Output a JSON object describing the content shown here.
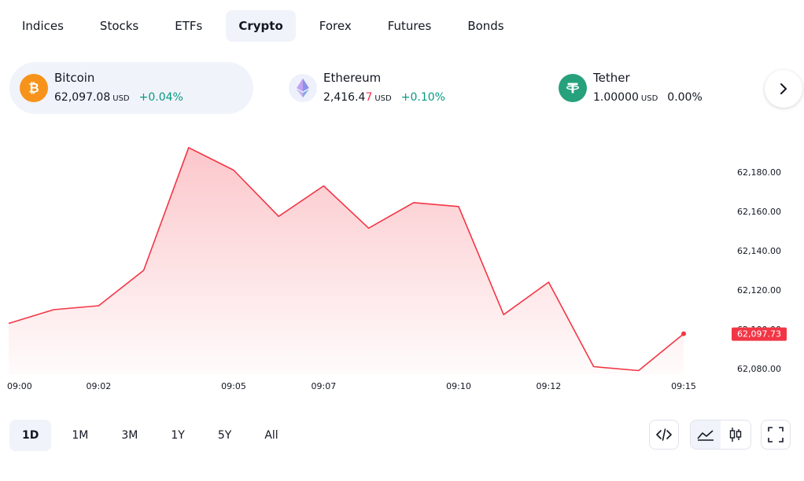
{
  "tabs": [
    {
      "label": "Indices",
      "active": false
    },
    {
      "label": "Stocks",
      "active": false
    },
    {
      "label": "ETFs",
      "active": false
    },
    {
      "label": "Crypto",
      "active": true
    },
    {
      "label": "Forex",
      "active": false
    },
    {
      "label": "Futures",
      "active": false
    },
    {
      "label": "Bonds",
      "active": false
    }
  ],
  "tickers": [
    {
      "name": "Bitcoin",
      "price": "62,097.08",
      "currency": "USD",
      "change": "+0.04%",
      "change_color": "#089981",
      "icon": "bitcoin-icon",
      "icon_color": "#f7931a",
      "active": true
    },
    {
      "name": "Ethereum",
      "price_main": "2,416.4",
      "price_last": "7",
      "currency": "USD",
      "change": "+0.10%",
      "change_color": "#089981",
      "icon": "ethereum-icon",
      "icon_color": "#627eea",
      "active": false
    },
    {
      "name": "Tether",
      "price": "1.00000",
      "currency": "USD",
      "change": "0.00%",
      "change_color": "#131722",
      "icon": "tether-icon",
      "icon_color": "#26a17b",
      "active": false
    }
  ],
  "chart_data": {
    "type": "area",
    "title": "",
    "xlabel": "",
    "ylabel": "",
    "x_tick_labels": [
      "09:00",
      "09:02",
      "09:05",
      "09:07",
      "09:10",
      "09:12",
      "09:15"
    ],
    "y_tick_labels": [
      "62,180.00",
      "62,160.00",
      "62,140.00",
      "62,120.00",
      "62,100.00",
      "62,080.00"
    ],
    "ylim": [
      62076,
      62190
    ],
    "x_range_minutes": [
      0,
      15
    ],
    "series": [
      {
        "x": [
          "09:00",
          "09:01",
          "09:02",
          "09:03",
          "09:04",
          "09:05",
          "09:06",
          "09:07",
          "09:08",
          "09:09",
          "09:10",
          "09:11",
          "09:12",
          "09:13",
          "09:14",
          "09:15"
        ],
        "values": [
          62103.0,
          62110.0,
          62112.0,
          62130.0,
          62192.5,
          62181.0,
          62157.5,
          62173.0,
          62151.5,
          62164.5,
          62162.5,
          62107.5,
          62124.0,
          62081.0,
          62079.0,
          62097.73
        ]
      }
    ],
    "last_value_label": "62,097.73",
    "line_color": "#f23645",
    "grid": false
  },
  "ranges": [
    {
      "label": "1D",
      "active": true
    },
    {
      "label": "1M",
      "active": false
    },
    {
      "label": "3M",
      "active": false
    },
    {
      "label": "1Y",
      "active": false
    },
    {
      "label": "5Y",
      "active": false
    },
    {
      "label": "All",
      "active": false
    }
  ],
  "tools": [
    "embed-code-icon",
    "area-chart-icon",
    "candles-icon",
    "fullscreen-icon"
  ]
}
